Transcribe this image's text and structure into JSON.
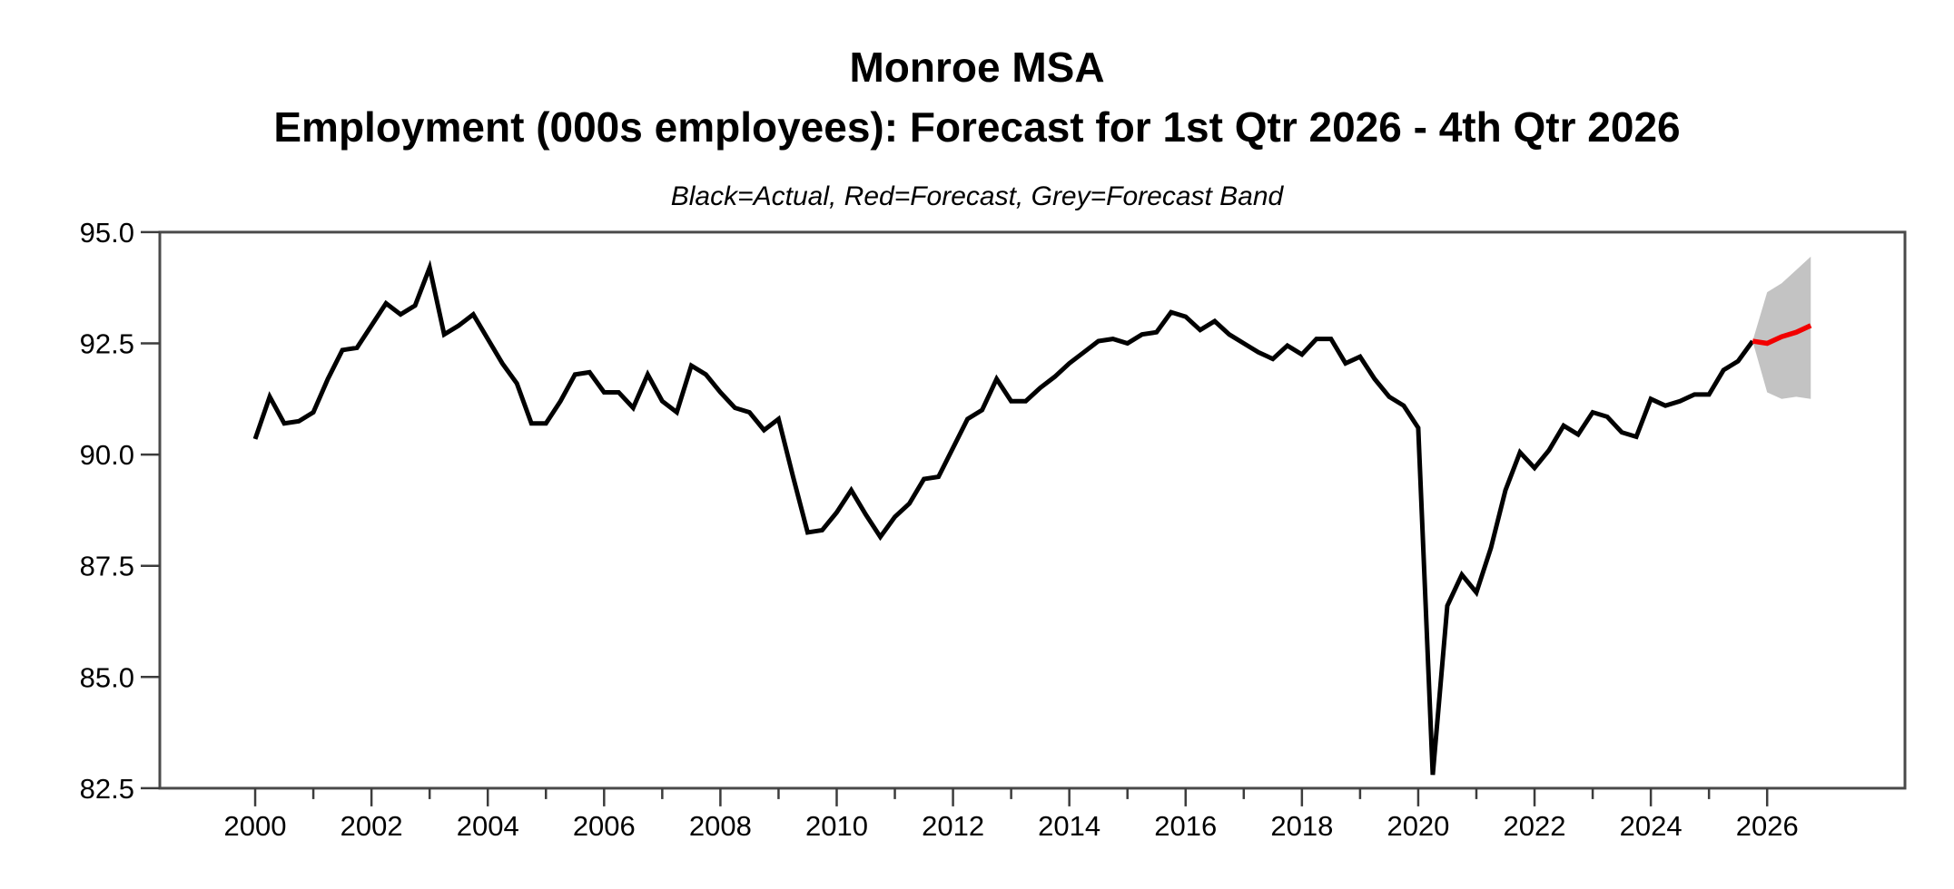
{
  "page": {
    "background": "#ffffff"
  },
  "title": {
    "line1": "Monroe MSA",
    "line2": "Employment (000s employees): Forecast for 1st Qtr 2026 - 4th Qtr 2026"
  },
  "subtitle": "Black=Actual, Red=Forecast, Grey=Forecast Band",
  "chart_data": {
    "type": "line",
    "title": "Monroe MSA",
    "subtitle": "Employment (000s employees): Forecast for 1st Qtr 2026 - 4th Qtr 2026",
    "legend_note": "Black=Actual, Red=Forecast, Grey=Forecast Band",
    "xlabel": "",
    "ylabel": "",
    "frequency": "quarterly",
    "grid": false,
    "xlim": [
      1998.36,
      2028.37
    ],
    "ylim": [
      82.5,
      95.0
    ],
    "yticks": {
      "values": [
        95.0,
        92.5,
        90.0,
        87.5,
        85.0,
        82.5
      ],
      "labels": [
        "95.0",
        "92.5",
        "90.0",
        "87.5",
        "85.0",
        "82.5"
      ]
    },
    "xticks_major": {
      "values": [
        2000,
        2002,
        2004,
        2006,
        2008,
        2010,
        2012,
        2014,
        2016,
        2018,
        2020,
        2022,
        2024,
        2026
      ],
      "labels": [
        "2000",
        "2002",
        "2004",
        "2006",
        "2008",
        "2010",
        "2012",
        "2014",
        "2016",
        "2018",
        "2020",
        "2022",
        "2024",
        "2026"
      ]
    },
    "xticks_minor": [
      2001,
      2003,
      2005,
      2007,
      2009,
      2011,
      2013,
      2015,
      2017,
      2019,
      2021,
      2023,
      2025
    ],
    "series": [
      {
        "name": "Actual",
        "color": "#000000",
        "start_x": 2000.0,
        "step_x": 0.25,
        "values": [
          90.35,
          91.3,
          90.7,
          90.75,
          90.95,
          91.7,
          92.35,
          92.4,
          92.9,
          93.4,
          93.15,
          93.35,
          94.2,
          92.7,
          92.9,
          93.15,
          92.6,
          92.05,
          91.6,
          90.7,
          90.7,
          91.2,
          91.8,
          91.85,
          91.4,
          91.4,
          91.05,
          91.8,
          91.2,
          90.95,
          92.0,
          91.8,
          91.4,
          91.05,
          90.95,
          90.55,
          90.8,
          89.5,
          88.25,
          88.3,
          88.7,
          89.2,
          88.65,
          88.15,
          88.6,
          88.9,
          89.45,
          89.5,
          90.15,
          90.8,
          91.0,
          91.7,
          91.2,
          91.2,
          91.5,
          91.75,
          92.05,
          92.3,
          92.55,
          92.6,
          92.5,
          92.7,
          92.75,
          93.2,
          93.1,
          92.8,
          93.0,
          92.7,
          92.5,
          92.3,
          92.15,
          92.45,
          92.25,
          92.6,
          92.6,
          92.05,
          92.2,
          91.7,
          91.3,
          91.1,
          90.6,
          82.8,
          86.6,
          87.3,
          86.9,
          87.9,
          89.2,
          90.05,
          89.7,
          90.1,
          90.65,
          90.45,
          90.95,
          90.85,
          90.5,
          90.4,
          91.25,
          91.1,
          91.2,
          91.35,
          91.35,
          91.9,
          92.1,
          92.55
        ]
      },
      {
        "name": "Forecast",
        "color": "#f20000",
        "start_x": 2025.75,
        "step_x": 0.25,
        "values": [
          92.55,
          92.5,
          92.65,
          92.75,
          92.9
        ]
      }
    ],
    "band": {
      "name": "Forecast Band",
      "color": "#c3c3c3",
      "start_x": 2025.75,
      "step_x": 0.25,
      "upper": [
        92.55,
        93.65,
        93.85,
        94.15,
        94.45
      ],
      "lower": [
        92.55,
        91.4,
        91.25,
        91.3,
        91.25
      ]
    }
  },
  "axis_style": {
    "frame_color": "#4a4a4a",
    "tick_color": "#3c3c3c",
    "label_color": "#000000"
  }
}
